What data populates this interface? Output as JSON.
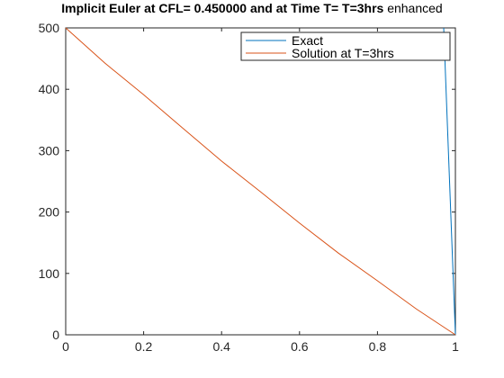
{
  "title": {
    "bold": "Implicit Euler at CFL= 0.450000 and at Time T= T=3hrs",
    "normal": "enhanced"
  },
  "chart_data": {
    "type": "line",
    "xlim": [
      0,
      1
    ],
    "ylim": [
      0,
      500
    ],
    "xticks": [
      0,
      0.2,
      0.4,
      0.6,
      0.8,
      1
    ],
    "xtick_labels": [
      "0",
      "0.2",
      "0.4",
      "0.6",
      "0.8",
      "1"
    ],
    "yticks": [
      0,
      100,
      200,
      300,
      400,
      500
    ],
    "ytick_labels": [
      "0",
      "100",
      "200",
      "300",
      "400",
      "500"
    ],
    "grid": false,
    "legend_position": "top-right",
    "series": [
      {
        "name": "Exact",
        "color": "#0072BD",
        "x": [
          0.97,
          1.0
        ],
        "y": [
          500,
          0
        ]
      },
      {
        "name": "Solution at T=3hrs",
        "color": "#D95319",
        "x": [
          0,
          0.1,
          0.2,
          0.3,
          0.4,
          0.5,
          0.6,
          0.7,
          0.8,
          0.9,
          1.0
        ],
        "y": [
          500,
          443,
          391,
          337,
          283,
          233,
          182,
          133,
          88,
          42,
          0
        ]
      }
    ]
  }
}
